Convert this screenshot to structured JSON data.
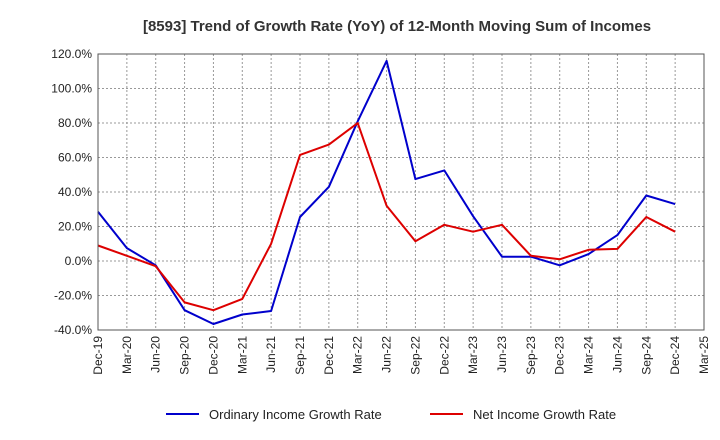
{
  "chart_data": {
    "type": "line",
    "title": "[8593]  Trend of Growth Rate (YoY) of 12-Month Moving Sum of Incomes",
    "xlabel": "",
    "ylabel": "",
    "ylim": [
      -40,
      120
    ],
    "yticks": [
      -40,
      -20,
      0,
      20,
      40,
      60,
      80,
      100,
      120
    ],
    "ytick_labels": [
      "-40.0%",
      "-20.0%",
      "0.0%",
      "20.0%",
      "40.0%",
      "60.0%",
      "80.0%",
      "100.0%",
      "120.0%"
    ],
    "x_labels": [
      "Dec-19",
      "Mar-20",
      "Jun-20",
      "Sep-20",
      "Dec-20",
      "Mar-21",
      "Jun-21",
      "Sep-21",
      "Dec-21",
      "Mar-22",
      "Jun-22",
      "Sep-22",
      "Dec-22",
      "Mar-23",
      "Jun-23",
      "Sep-23",
      "Dec-23",
      "Mar-24",
      "Jun-24",
      "Sep-24",
      "Dec-24",
      "Mar-25"
    ],
    "grid": true,
    "legend_position": "bottom",
    "series": [
      {
        "name": "Ordinary Income Growth Rate",
        "color": "#0000cc",
        "values": [
          28.5,
          7.5,
          -2.5,
          -28.5,
          -36.5,
          -31.0,
          -29.0,
          25.5,
          43.0,
          81.0,
          116.0,
          47.5,
          52.5,
          26.0,
          2.5,
          2.5,
          -2.5,
          4.0,
          15.0,
          38.0,
          33.0,
          null
        ]
      },
      {
        "name": "Net Income Growth Rate",
        "color": "#dd0000",
        "values": [
          9.0,
          3.0,
          -3.0,
          -24.0,
          -28.5,
          -22.0,
          10.0,
          61.5,
          67.5,
          80.0,
          32.0,
          11.5,
          21.0,
          17.0,
          21.0,
          3.0,
          1.0,
          6.5,
          7.0,
          25.5,
          17.0,
          null
        ]
      }
    ]
  }
}
